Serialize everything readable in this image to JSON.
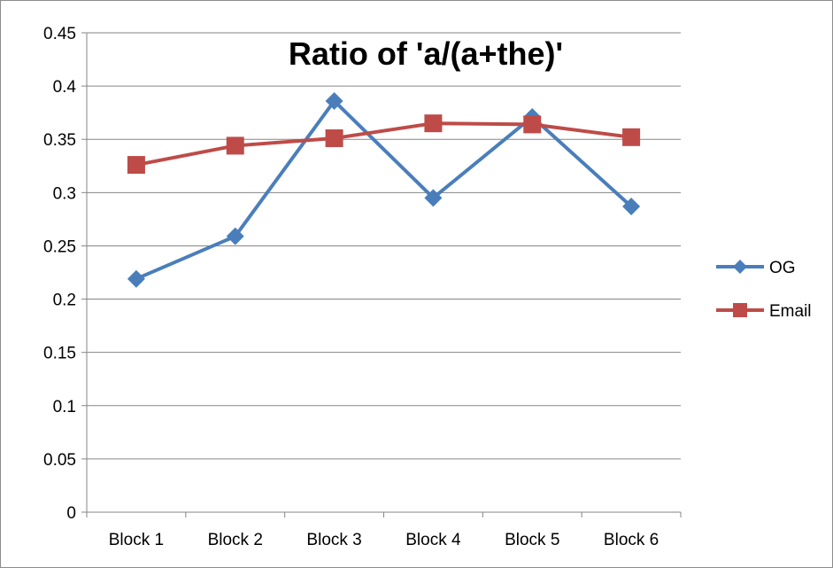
{
  "chart_data": {
    "type": "line",
    "title": "Ratio of 'a/(a+the)'",
    "xlabel": "",
    "ylabel": "",
    "categories": [
      "Block 1",
      "Block 2",
      "Block 3",
      "Block 4",
      "Block 5",
      "Block 6"
    ],
    "ylim": [
      0,
      0.45
    ],
    "yticks": [
      0,
      0.05,
      0.1,
      0.15,
      0.2,
      0.25,
      0.3,
      0.35,
      0.4,
      0.45
    ],
    "ytick_labels": [
      "0",
      "0.05",
      "0.1",
      "0.15",
      "0.2",
      "0.25",
      "0.3",
      "0.35",
      "0.4",
      "0.45"
    ],
    "grid": true,
    "legend_position": "right",
    "series": [
      {
        "name": "OG",
        "values": [
          0.219,
          0.259,
          0.386,
          0.295,
          0.371,
          0.287
        ],
        "color": "#4a7ebb",
        "marker": "diamond"
      },
      {
        "name": "Email",
        "values": [
          0.326,
          0.344,
          0.351,
          0.365,
          0.364,
          0.352
        ],
        "color": "#be4b48",
        "marker": "square"
      }
    ]
  }
}
